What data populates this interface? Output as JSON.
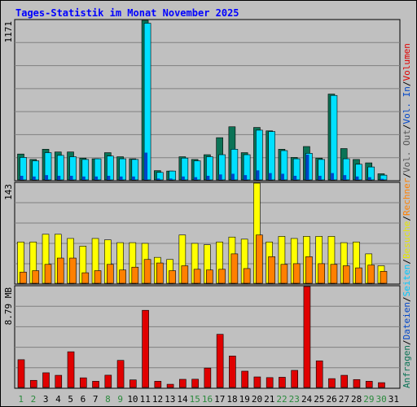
{
  "title": "Tages-Statistik im Monat November 2025",
  "colors": {
    "frame_bg": "#c0c0c0",
    "title": "#0000ff",
    "anfragen": "#0b7356",
    "dateien": "#00e0ff",
    "seiten": "#0046c8",
    "besuche": "#ffff00",
    "rechner": "#ff8000",
    "volumen": "#e00000",
    "weekend_label": "#2a8a3c",
    "label_text": "#000000"
  },
  "right_legend": [
    {
      "text": "Anfragen",
      "color": "#0b7356"
    },
    {
      "text": "/",
      "color": "#000000"
    },
    {
      "text": "Dateien",
      "color": "#0046c8"
    },
    {
      "text": "/",
      "color": "#000000"
    },
    {
      "text": "Seiten",
      "color": "#00c8ff"
    },
    {
      "text": "/",
      "color": "#000000"
    },
    {
      "text": "Besuche",
      "color": "#e6e600"
    },
    {
      "text": "/",
      "color": "#000000"
    },
    {
      "text": "Rechner",
      "color": "#ff8000"
    },
    {
      "text": "/",
      "color": "#000000"
    },
    {
      "text": "Vol. Out",
      "color": "#555555"
    },
    {
      "text": "/",
      "color": "#000000"
    },
    {
      "text": "Vol. In",
      "color": "#0046c8"
    },
    {
      "text": "/",
      "color": "#000000"
    },
    {
      "text": "Volumen",
      "color": "#e00000"
    }
  ],
  "chart_data": [
    {
      "type": "bar",
      "panel": "top",
      "max_label": "1171",
      "ylim": [
        0,
        1171
      ],
      "categories": [
        "1",
        "2",
        "3",
        "4",
        "5",
        "6",
        "7",
        "8",
        "9",
        "10",
        "11",
        "12",
        "13",
        "14",
        "15",
        "16",
        "17",
        "18",
        "19",
        "20",
        "21",
        "22",
        "23",
        "24",
        "25",
        "26",
        "27",
        "28",
        "29",
        "30",
        "31"
      ],
      "weekend_days": [
        "1",
        "2",
        "8",
        "9",
        "15",
        "16",
        "22",
        "23",
        "29",
        "30"
      ],
      "series": [
        {
          "name": "Anfragen",
          "values": [
            190,
            150,
            225,
            205,
            205,
            160,
            155,
            200,
            170,
            155,
            1171,
            68,
            65,
            170,
            150,
            185,
            310,
            390,
            200,
            385,
            360,
            225,
            165,
            245,
            160,
            630,
            230,
            150,
            125,
            45,
            0
          ]
        },
        {
          "name": "Dateien",
          "values": [
            165,
            140,
            200,
            180,
            170,
            150,
            155,
            175,
            155,
            150,
            1150,
            55,
            65,
            160,
            140,
            170,
            185,
            225,
            185,
            365,
            355,
            215,
            155,
            195,
            150,
            620,
            155,
            115,
            95,
            35,
            0
          ]
        },
        {
          "name": "Seiten",
          "values": [
            30,
            25,
            35,
            30,
            30,
            25,
            25,
            30,
            25,
            25,
            200,
            10,
            10,
            25,
            20,
            30,
            40,
            45,
            35,
            70,
            50,
            45,
            30,
            185,
            30,
            50,
            35,
            25,
            20,
            8,
            0
          ]
        }
      ]
    },
    {
      "type": "bar",
      "panel": "middle",
      "max_label": "143",
      "ylim": [
        0,
        143
      ],
      "categories": [
        "1",
        "2",
        "3",
        "4",
        "5",
        "6",
        "7",
        "8",
        "9",
        "10",
        "11",
        "12",
        "13",
        "14",
        "15",
        "16",
        "17",
        "18",
        "19",
        "20",
        "21",
        "22",
        "23",
        "24",
        "25",
        "26",
        "27",
        "28",
        "29",
        "30",
        "31"
      ],
      "series": [
        {
          "name": "Besuche",
          "values": [
            59,
            59,
            70,
            70,
            64,
            53,
            64,
            62,
            58,
            58,
            57,
            37,
            34,
            69,
            57,
            55,
            59,
            66,
            63,
            143,
            59,
            67,
            64,
            67,
            67,
            67,
            58,
            59,
            42,
            25,
            0
          ]
        },
        {
          "name": "Rechner",
          "values": [
            16,
            18,
            27,
            36,
            36,
            15,
            18,
            27,
            19,
            23,
            34,
            29,
            18,
            25,
            20,
            19,
            20,
            42,
            21,
            69,
            38,
            27,
            28,
            38,
            28,
            27,
            25,
            22,
            26,
            17,
            0
          ]
        }
      ]
    },
    {
      "type": "bar",
      "panel": "bottom",
      "max_label": "8.79 MB",
      "ylim": [
        0,
        8.79
      ],
      "unit": "MB",
      "categories": [
        "1",
        "2",
        "3",
        "4",
        "5",
        "6",
        "7",
        "8",
        "9",
        "10",
        "11",
        "12",
        "13",
        "14",
        "15",
        "16",
        "17",
        "18",
        "19",
        "20",
        "21",
        "22",
        "23",
        "24",
        "25",
        "26",
        "27",
        "28",
        "29",
        "30",
        "31"
      ],
      "series": [
        {
          "name": "Volumen",
          "values": [
            2.42,
            0.62,
            1.28,
            1.06,
            3.11,
            0.84,
            0.54,
            1.07,
            2.36,
            0.66,
            6.72,
            0.54,
            0.28,
            0.71,
            0.72,
            1.69,
            4.63,
            2.74,
            1.42,
            0.92,
            0.86,
            0.89,
            1.49,
            8.79,
            2.32,
            0.77,
            1.06,
            0.69,
            0.54,
            0.42,
            0
          ]
        }
      ]
    }
  ]
}
